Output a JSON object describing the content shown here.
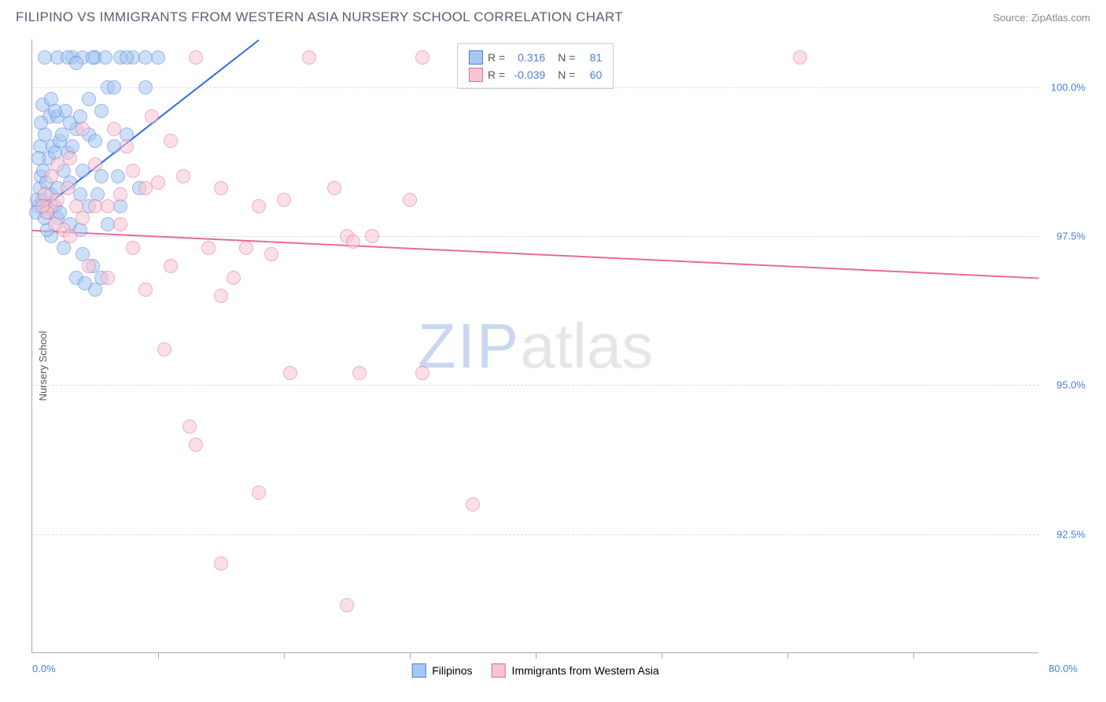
{
  "header": {
    "title": "FILIPINO VS IMMIGRANTS FROM WESTERN ASIA NURSERY SCHOOL CORRELATION CHART",
    "source": "Source: ZipAtlas.com"
  },
  "watermark": {
    "part1": "ZIP",
    "part2": "atlas"
  },
  "chart": {
    "type": "scatter",
    "background_color": "#ffffff",
    "grid_color": "#dddddd",
    "axis_color": "#aaaaaa",
    "tick_label_color": "#4a7fd6",
    "tick_fontsize": 13,
    "label_fontsize": 13,
    "ylabel": "Nursery School",
    "xlim": [
      0,
      80
    ],
    "ylim": [
      90.5,
      100.8
    ],
    "x_ticks": [
      10,
      20,
      30,
      40,
      50,
      60,
      70
    ],
    "x_tick_labels": {
      "left": "0.0%",
      "right": "80.0%"
    },
    "y_ticks": [
      92.5,
      95.0,
      97.5,
      100.0
    ],
    "y_tick_labels": [
      "92.5%",
      "95.0%",
      "97.5%",
      "100.0%"
    ],
    "point_radius": 9,
    "point_opacity": 0.55,
    "series": [
      {
        "name": "Filipinos",
        "color_fill": "#a7c7f3",
        "color_stroke": "#4a7fd6",
        "R": "0.316",
        "N": "81",
        "trend": {
          "x1": 1,
          "y1": 98.0,
          "x2": 18,
          "y2": 100.8,
          "color": "#2f6de0",
          "width": 2
        },
        "points": [
          [
            0.5,
            98.0
          ],
          [
            0.8,
            98.1
          ],
          [
            0.6,
            98.3
          ],
          [
            1.0,
            98.0
          ],
          [
            1.2,
            97.9
          ],
          [
            0.7,
            98.5
          ],
          [
            1.5,
            98.2
          ],
          [
            0.9,
            98.6
          ],
          [
            1.1,
            98.4
          ],
          [
            0.4,
            98.1
          ],
          [
            1.8,
            98.0
          ],
          [
            2.0,
            98.3
          ],
          [
            2.5,
            98.6
          ],
          [
            1.3,
            98.8
          ],
          [
            0.6,
            99.0
          ],
          [
            1.0,
            99.2
          ],
          [
            1.6,
            99.0
          ],
          [
            2.2,
            99.1
          ],
          [
            2.8,
            98.9
          ],
          [
            3.5,
            99.3
          ],
          [
            1.4,
            99.5
          ],
          [
            2.0,
            99.5
          ],
          [
            2.6,
            99.6
          ],
          [
            3.0,
            99.4
          ],
          [
            0.8,
            99.7
          ],
          [
            1.5,
            99.8
          ],
          [
            3.8,
            99.5
          ],
          [
            4.5,
            99.2
          ],
          [
            4.0,
            98.6
          ],
          [
            5.5,
            98.5
          ],
          [
            5.0,
            99.1
          ],
          [
            6.0,
            100.0
          ],
          [
            6.5,
            99.0
          ],
          [
            7.0,
            100.5
          ],
          [
            3.2,
            100.5
          ],
          [
            4.0,
            100.5
          ],
          [
            5.0,
            100.5
          ],
          [
            8.0,
            100.5
          ],
          [
            10.0,
            100.5
          ],
          [
            2.0,
            100.5
          ],
          [
            2.8,
            100.5
          ],
          [
            4.8,
            100.5
          ],
          [
            5.8,
            100.5
          ],
          [
            9.0,
            100.5
          ],
          [
            1.0,
            100.5
          ],
          [
            3.5,
            100.4
          ],
          [
            7.5,
            100.5
          ],
          [
            2.0,
            97.8
          ],
          [
            3.0,
            97.7
          ],
          [
            1.5,
            97.5
          ],
          [
            4.0,
            97.2
          ],
          [
            4.8,
            97.0
          ],
          [
            5.5,
            96.8
          ],
          [
            3.5,
            96.8
          ],
          [
            5.0,
            96.6
          ],
          [
            4.2,
            96.7
          ],
          [
            1.2,
            97.6
          ],
          [
            2.5,
            97.3
          ],
          [
            3.8,
            97.6
          ],
          [
            6.0,
            97.7
          ],
          [
            7.0,
            98.0
          ],
          [
            8.5,
            98.3
          ],
          [
            9.0,
            100.0
          ],
          [
            0.5,
            98.8
          ],
          [
            1.8,
            98.9
          ],
          [
            2.4,
            99.2
          ],
          [
            3.2,
            99.0
          ],
          [
            4.5,
            99.8
          ],
          [
            5.5,
            99.6
          ],
          [
            6.5,
            100.0
          ],
          [
            0.3,
            97.9
          ],
          [
            1.0,
            97.8
          ],
          [
            0.7,
            99.4
          ],
          [
            1.8,
            99.6
          ],
          [
            3.0,
            98.4
          ],
          [
            3.8,
            98.2
          ],
          [
            2.2,
            97.9
          ],
          [
            4.5,
            98.0
          ],
          [
            5.2,
            98.2
          ],
          [
            6.8,
            98.5
          ],
          [
            7.5,
            99.2
          ]
        ]
      },
      {
        "name": "Immigrants from Western Asia",
        "color_fill": "#f7c5d4",
        "color_stroke": "#e86a9a",
        "R": "-0.039",
        "N": "60",
        "trend": {
          "x1": 0,
          "y1": 97.6,
          "x2": 80,
          "y2": 96.8,
          "color": "#e86a9a",
          "width": 2
        },
        "points": [
          [
            1.0,
            98.2
          ],
          [
            1.5,
            98.0
          ],
          [
            2.0,
            98.1
          ],
          [
            2.8,
            98.3
          ],
          [
            3.5,
            98.0
          ],
          [
            4.0,
            97.8
          ],
          [
            1.2,
            97.9
          ],
          [
            2.5,
            97.6
          ],
          [
            3.0,
            97.5
          ],
          [
            5.0,
            98.0
          ],
          [
            6.0,
            98.0
          ],
          [
            7.0,
            98.2
          ],
          [
            8.0,
            98.6
          ],
          [
            10.0,
            98.4
          ],
          [
            12.0,
            98.5
          ],
          [
            6.5,
            99.3
          ],
          [
            7.5,
            99.0
          ],
          [
            9.0,
            98.3
          ],
          [
            9.5,
            99.5
          ],
          [
            11.0,
            99.1
          ],
          [
            13.0,
            100.5
          ],
          [
            15.0,
            98.3
          ],
          [
            17.0,
            97.3
          ],
          [
            18.0,
            98.0
          ],
          [
            20.0,
            98.1
          ],
          [
            22.0,
            100.5
          ],
          [
            24.0,
            98.3
          ],
          [
            31.0,
            100.5
          ],
          [
            61.0,
            100.5
          ],
          [
            14.0,
            97.3
          ],
          [
            16.0,
            96.8
          ],
          [
            19.0,
            97.2
          ],
          [
            25.0,
            97.5
          ],
          [
            4.5,
            97.0
          ],
          [
            6.0,
            96.8
          ],
          [
            8.0,
            97.3
          ],
          [
            10.5,
            95.6
          ],
          [
            12.5,
            94.3
          ],
          [
            13.0,
            94.0
          ],
          [
            15.0,
            96.5
          ],
          [
            18.0,
            93.2
          ],
          [
            20.5,
            95.2
          ],
          [
            26.0,
            95.2
          ],
          [
            31.0,
            95.2
          ],
          [
            35.0,
            93.0
          ],
          [
            15.0,
            92.0
          ],
          [
            25.0,
            91.3
          ],
          [
            25.5,
            97.4
          ],
          [
            27.0,
            97.5
          ],
          [
            30.0,
            98.1
          ],
          [
            3.0,
            98.8
          ],
          [
            4.0,
            99.3
          ],
          [
            5.0,
            98.7
          ],
          [
            7.0,
            97.7
          ],
          [
            9.0,
            96.6
          ],
          [
            11.0,
            97.0
          ],
          [
            2.0,
            98.7
          ],
          [
            1.5,
            98.5
          ],
          [
            0.8,
            98.0
          ],
          [
            1.8,
            97.7
          ]
        ]
      }
    ],
    "bottom_legend": [
      {
        "swatch_fill": "#a7c7f3",
        "swatch_stroke": "#4a7fd6",
        "label": "Filipinos"
      },
      {
        "swatch_fill": "#f7c5d4",
        "swatch_stroke": "#e86a9a",
        "label": "Immigrants from Western Asia"
      }
    ],
    "legend_box": {
      "r_label": "R =",
      "n_label": "N ="
    }
  }
}
